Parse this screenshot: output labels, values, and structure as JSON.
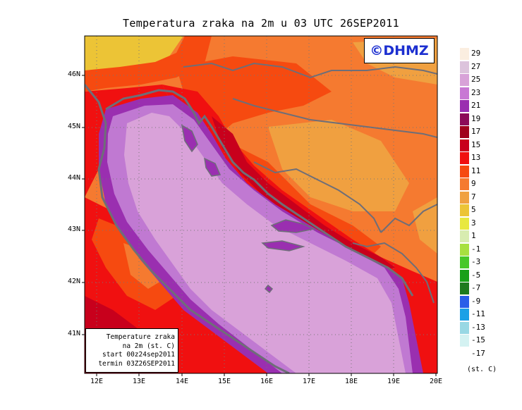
{
  "title": "Temperatura zraka na 2m u 03 UTC 26SEP2011",
  "logo": "©DHMZ",
  "info_box": {
    "line1": "Temperature zraka",
    "line2": "na 2m (st. C)",
    "line3": "start 00z24sep2011",
    "line4": "termin 03Z26SEP2011"
  },
  "axes": {
    "lat_labels": [
      "46N",
      "45N",
      "44N",
      "43N",
      "42N",
      "41N"
    ],
    "lon_labels": [
      "12E",
      "13E",
      "14E",
      "15E",
      "16E",
      "17E",
      "18E",
      "19E",
      "20E"
    ]
  },
  "legend": {
    "units": "(st. C)",
    "labels": [
      "29",
      "27",
      "25",
      "23",
      "21",
      "19",
      "17",
      "15",
      "13",
      "11",
      "9",
      "7",
      "5",
      "3",
      "1",
      "-1",
      "-3",
      "-5",
      "-7",
      "-9",
      "-11",
      "-13",
      "-15",
      "-17"
    ],
    "colors": [
      "#fbeee0",
      "#dcc3dc",
      "#d8a2d8",
      "#c878d4",
      "#9a2fb0",
      "#8c0a58",
      "#a0001c",
      "#c8001c",
      "#f01010",
      "#f64a10",
      "#f57a30",
      "#f0a040",
      "#ecc436",
      "#e8e840",
      "#d8ecb0",
      "#a8e040",
      "#48c828",
      "#18a018",
      "#1e7a1e",
      "#2a5ee8",
      "#1aa0e6",
      "#98d8e4",
      "#d4f2f2",
      "#ffffff"
    ]
  },
  "colors": {
    "sea": "#d9a2d9",
    "coastal_sea": "#c079d2",
    "deep_coast": "#9a2fb0",
    "warm_land": "#f01010",
    "inland": "#f64a10",
    "interior": "#f57a30",
    "cool_interior": "#f0a040",
    "alps": "#ecc436",
    "borders": "#6e6e78",
    "grid": "#777777"
  }
}
